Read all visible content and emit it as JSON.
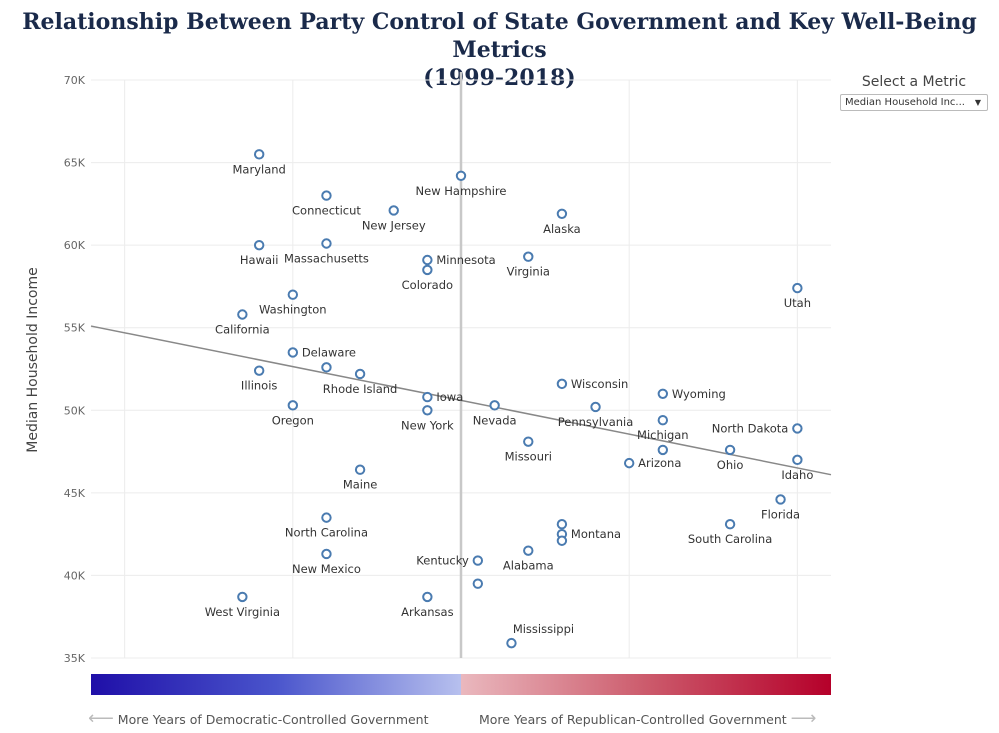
{
  "title_line1": "Relationship Between Party Control of State Government and Key Well-Being Metrics",
  "title_line2": "(1999-2018)",
  "metric_selector": {
    "label": "Select a Metric",
    "value": "Median Household Inc...",
    "arrow": "▼"
  },
  "legend": {
    "left_label": "More Years of Democratic-Controlled Government",
    "right_label": "More Years of Republican-Controlled Government",
    "left_arrow": "⟵",
    "right_arrow": "⟶",
    "colors": [
      "#1f0fa8",
      "#4a55cc",
      "#b7c0ee",
      "#eab8be",
      "#cc5b6c",
      "#b5002a"
    ]
  },
  "chart_data": {
    "type": "scatter",
    "ylabel": "Median Household Income",
    "xlabel": "",
    "ylim": [
      35000,
      70000
    ],
    "yticks": [
      {
        "value": 35000,
        "label": "35K"
      },
      {
        "value": 40000,
        "label": "40K"
      },
      {
        "value": 45000,
        "label": "45K"
      },
      {
        "value": 50000,
        "label": "50K"
      },
      {
        "value": 55000,
        "label": "55K"
      },
      {
        "value": 60000,
        "label": "60K"
      },
      {
        "value": 65000,
        "label": "65K"
      },
      {
        "value": 70000,
        "label": "70K"
      }
    ],
    "xlim": [
      -11,
      11
    ],
    "xgrid": [
      -10,
      -5,
      0,
      5,
      10
    ],
    "divider_x": 0,
    "trend": {
      "x0": -11,
      "y0": 55100,
      "x1": 11,
      "y1": 46100
    },
    "marker_color": "#4a7bb0",
    "trend_color": "#888888",
    "points": [
      {
        "name": "Maryland",
        "x": -6,
        "y": 65500,
        "label_pos": "below"
      },
      {
        "name": "Connecticut",
        "x": -4,
        "y": 63000,
        "label_pos": "below"
      },
      {
        "name": "New Jersey",
        "x": -2,
        "y": 62100,
        "label_pos": "below"
      },
      {
        "name": "New Hampshire",
        "x": 0,
        "y": 64200,
        "label_pos": "below"
      },
      {
        "name": "Alaska",
        "x": 3,
        "y": 61900,
        "label_pos": "below"
      },
      {
        "name": "Hawaii",
        "x": -6,
        "y": 60000,
        "label_pos": "below"
      },
      {
        "name": "Massachusetts",
        "x": -4,
        "y": 60100,
        "label_pos": "below"
      },
      {
        "name": "Minnesota",
        "x": -1,
        "y": 59100,
        "label_pos": "right"
      },
      {
        "name": "Virginia",
        "x": 2,
        "y": 59300,
        "label_pos": "below"
      },
      {
        "name": "Colorado",
        "x": -1,
        "y": 58500,
        "label_pos": "below"
      },
      {
        "name": "Utah",
        "x": 10,
        "y": 57400,
        "label_pos": "below"
      },
      {
        "name": "Washington",
        "x": -5,
        "y": 57000,
        "label_pos": "below"
      },
      {
        "name": "California",
        "x": -6.5,
        "y": 55800,
        "label_pos": "below"
      },
      {
        "name": "Delaware",
        "x": -5,
        "y": 53500,
        "label_pos": "right"
      },
      {
        "name": "Rhode Island",
        "x": -3,
        "y": 52200,
        "label_pos": "below"
      },
      {
        "name": "Illinois",
        "x": -6,
        "y": 52400,
        "label_pos": "below"
      },
      {
        "name": "",
        "x": -4,
        "y": 52600,
        "label_pos": "none"
      },
      {
        "name": "Iowa",
        "x": -1,
        "y": 50800,
        "label_pos": "right"
      },
      {
        "name": "Wisconsin",
        "x": 3,
        "y": 51600,
        "label_pos": "right"
      },
      {
        "name": "Wyoming",
        "x": 6,
        "y": 51000,
        "label_pos": "right"
      },
      {
        "name": "Oregon",
        "x": -5,
        "y": 50300,
        "label_pos": "below"
      },
      {
        "name": "New York",
        "x": -1,
        "y": 50000,
        "label_pos": "below"
      },
      {
        "name": "Nevada",
        "x": 1,
        "y": 50300,
        "label_pos": "below"
      },
      {
        "name": "Pennsylvania",
        "x": 4,
        "y": 50200,
        "label_pos": "below"
      },
      {
        "name": "Michigan",
        "x": 6,
        "y": 49400,
        "label_pos": "below"
      },
      {
        "name": "North Dakota",
        "x": 10,
        "y": 48900,
        "label_pos": "left"
      },
      {
        "name": "Missouri",
        "x": 2,
        "y": 48100,
        "label_pos": "below"
      },
      {
        "name": "",
        "x": 6,
        "y": 47600,
        "label_pos": "none"
      },
      {
        "name": "Arizona",
        "x": 5,
        "y": 46800,
        "label_pos": "right"
      },
      {
        "name": "Ohio",
        "x": 8,
        "y": 47600,
        "label_pos": "below"
      },
      {
        "name": "Idaho",
        "x": 10,
        "y": 47000,
        "label_pos": "below"
      },
      {
        "name": "Maine",
        "x": -3,
        "y": 46400,
        "label_pos": "below"
      },
      {
        "name": "Florida",
        "x": 9.5,
        "y": 44600,
        "label_pos": "below"
      },
      {
        "name": "North Carolina",
        "x": -4,
        "y": 43500,
        "label_pos": "below"
      },
      {
        "name": "South Carolina",
        "x": 8,
        "y": 43100,
        "label_pos": "below"
      },
      {
        "name": "",
        "x": 3,
        "y": 43100,
        "label_pos": "none"
      },
      {
        "name": "Montana",
        "x": 3,
        "y": 42500,
        "label_pos": "right"
      },
      {
        "name": "",
        "x": 3,
        "y": 42100,
        "label_pos": "none"
      },
      {
        "name": "Alabama",
        "x": 2,
        "y": 41500,
        "label_pos": "below"
      },
      {
        "name": "New Mexico",
        "x": -4,
        "y": 41300,
        "label_pos": "below"
      },
      {
        "name": "Kentucky",
        "x": 0.5,
        "y": 40900,
        "label_pos": "left"
      },
      {
        "name": "",
        "x": 0.5,
        "y": 39500,
        "label_pos": "none"
      },
      {
        "name": "West Virginia",
        "x": -6.5,
        "y": 38700,
        "label_pos": "below"
      },
      {
        "name": "Arkansas",
        "x": -1,
        "y": 38700,
        "label_pos": "below"
      },
      {
        "name": "Mississippi",
        "x": 1.5,
        "y": 35900,
        "label_pos": "above-right"
      }
    ]
  }
}
